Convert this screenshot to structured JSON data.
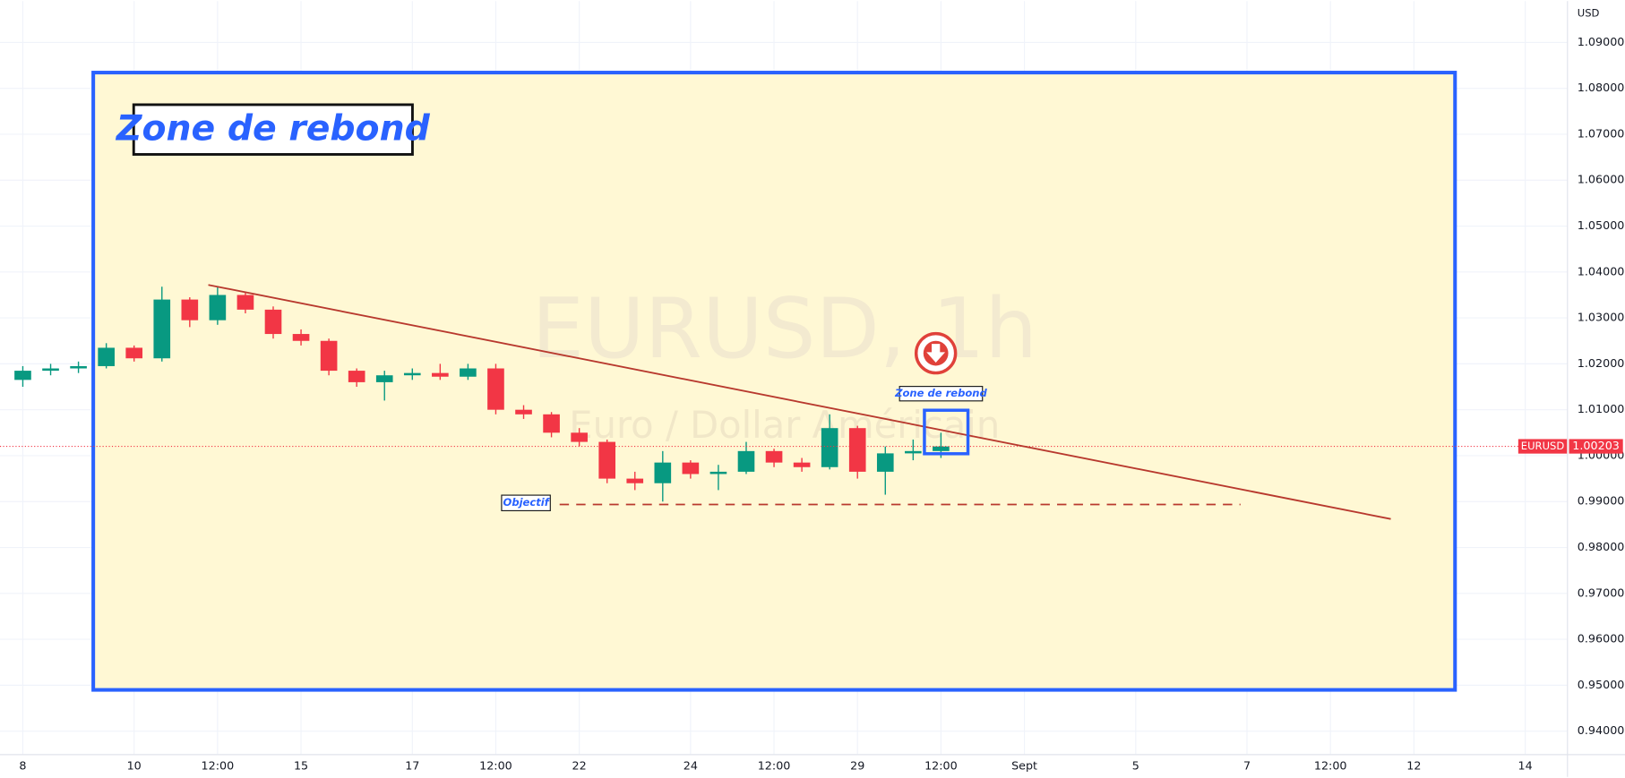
{
  "chart_data": {
    "type": "candlestick",
    "title": "EURUSD, 1h",
    "subtitle": "Euro / Dollar Américain",
    "symbol": "EURUSD",
    "currency": "USD",
    "up_color": "#089981",
    "down_color": "#f23645",
    "grid": true,
    "x": [
      0,
      0.5,
      1,
      1.5,
      2,
      2.5,
      3,
      3.5,
      4,
      4.5,
      5,
      5.5,
      6,
      6.5,
      7,
      7.5,
      8,
      8.5,
      9,
      9.5,
      10,
      10.5,
      11,
      11.5,
      12,
      12.5,
      13,
      13.5,
      14,
      14.5,
      15,
      15.5,
      16,
      16.5
    ],
    "open": [
      1.0165,
      1.0185,
      1.019,
      1.0195,
      1.0235,
      1.0212,
      1.034,
      1.0295,
      1.035,
      1.0318,
      1.0265,
      1.025,
      1.0185,
      1.016,
      1.0175,
      1.018,
      1.0172,
      1.019,
      1.01,
      1.009,
      1.005,
      1.003,
      0.995,
      0.994,
      0.9985,
      0.996,
      0.9965,
      1.001,
      0.9985,
      0.9975,
      1.006,
      0.9965,
      1.0005,
      1.001
    ],
    "high": [
      1.0195,
      1.02,
      1.0205,
      1.0245,
      1.024,
      1.0368,
      1.0345,
      1.0368,
      1.0355,
      1.0325,
      1.0275,
      1.0255,
      1.019,
      1.0185,
      1.019,
      1.02,
      1.02,
      1.02,
      1.011,
      1.0095,
      1.006,
      1.0035,
      0.9965,
      1.001,
      0.999,
      0.998,
      1.003,
      1.0015,
      0.9995,
      1.009,
      1.0065,
      1.002,
      1.0035,
      1.005
    ],
    "low": [
      1.015,
      1.0175,
      1.018,
      1.019,
      1.0205,
      1.0205,
      1.028,
      1.0285,
      1.031,
      1.0255,
      1.024,
      1.0175,
      1.015,
      1.012,
      1.0165,
      1.0165,
      1.0165,
      1.009,
      1.008,
      1.004,
      1.002,
      0.994,
      0.9925,
      0.99,
      0.995,
      0.9925,
      0.996,
      0.9975,
      0.9965,
      0.997,
      0.995,
      0.9915,
      0.999,
      0.9995
    ],
    "close": [
      1.0185,
      1.019,
      1.0195,
      1.0235,
      1.0212,
      1.034,
      1.0295,
      1.035,
      1.0318,
      1.0265,
      1.025,
      1.0185,
      1.016,
      1.0175,
      1.018,
      1.0172,
      1.019,
      1.01,
      1.009,
      1.005,
      1.003,
      0.995,
      0.994,
      0.9985,
      0.996,
      0.9965,
      1.001,
      0.9985,
      0.9975,
      1.006,
      0.9965,
      1.0005,
      1.001,
      1.002
    ],
    "last_price": 1.00203,
    "xlim": [
      -0.41,
      27.75
    ],
    "ylim": [
      0.935,
      1.099
    ],
    "xticks": [
      {
        "value": 0,
        "label": "8"
      },
      {
        "value": 2,
        "label": "10"
      },
      {
        "value": 3.5,
        "label": "12:00"
      },
      {
        "value": 5,
        "label": "15"
      },
      {
        "value": 7,
        "label": "17"
      },
      {
        "value": 8.5,
        "label": "12:00"
      },
      {
        "value": 10,
        "label": "22"
      },
      {
        "value": 12,
        "label": "24"
      },
      {
        "value": 13.5,
        "label": "12:00"
      },
      {
        "value": 15,
        "label": "29"
      },
      {
        "value": 16.5,
        "label": "12:00"
      },
      {
        "value": 18,
        "label": "Sept"
      },
      {
        "value": 20,
        "label": "5"
      },
      {
        "value": 22,
        "label": "7"
      },
      {
        "value": 23.5,
        "label": "12:00"
      },
      {
        "value": 25,
        "label": "12"
      },
      {
        "value": 27,
        "label": "14"
      }
    ],
    "yticks": [
      {
        "value": 0.94,
        "label": "0.94000"
      },
      {
        "value": 0.95,
        "label": "0.95000"
      },
      {
        "value": 0.96,
        "label": "0.96000"
      },
      {
        "value": 0.97,
        "label": "0.97000"
      },
      {
        "value": 0.98,
        "label": "0.98000"
      },
      {
        "value": 0.99,
        "label": "0.99000"
      },
      {
        "value": 1.0,
        "label": "1.00000"
      },
      {
        "value": 1.01,
        "label": "1.01000"
      },
      {
        "value": 1.02,
        "label": "1.02000"
      },
      {
        "value": 1.03,
        "label": "1.03000"
      },
      {
        "value": 1.04,
        "label": "1.04000"
      },
      {
        "value": 1.05,
        "label": "1.05000"
      },
      {
        "value": 1.06,
        "label": "1.06000"
      },
      {
        "value": 1.07,
        "label": "1.07000"
      },
      {
        "value": 1.08,
        "label": "1.08000"
      },
      {
        "value": 1.09,
        "label": "1.09000"
      }
    ],
    "annotations": {
      "zone_title": "Zone de rebond",
      "zone_small": "Zone de rebond",
      "target": "Objectif"
    }
  }
}
